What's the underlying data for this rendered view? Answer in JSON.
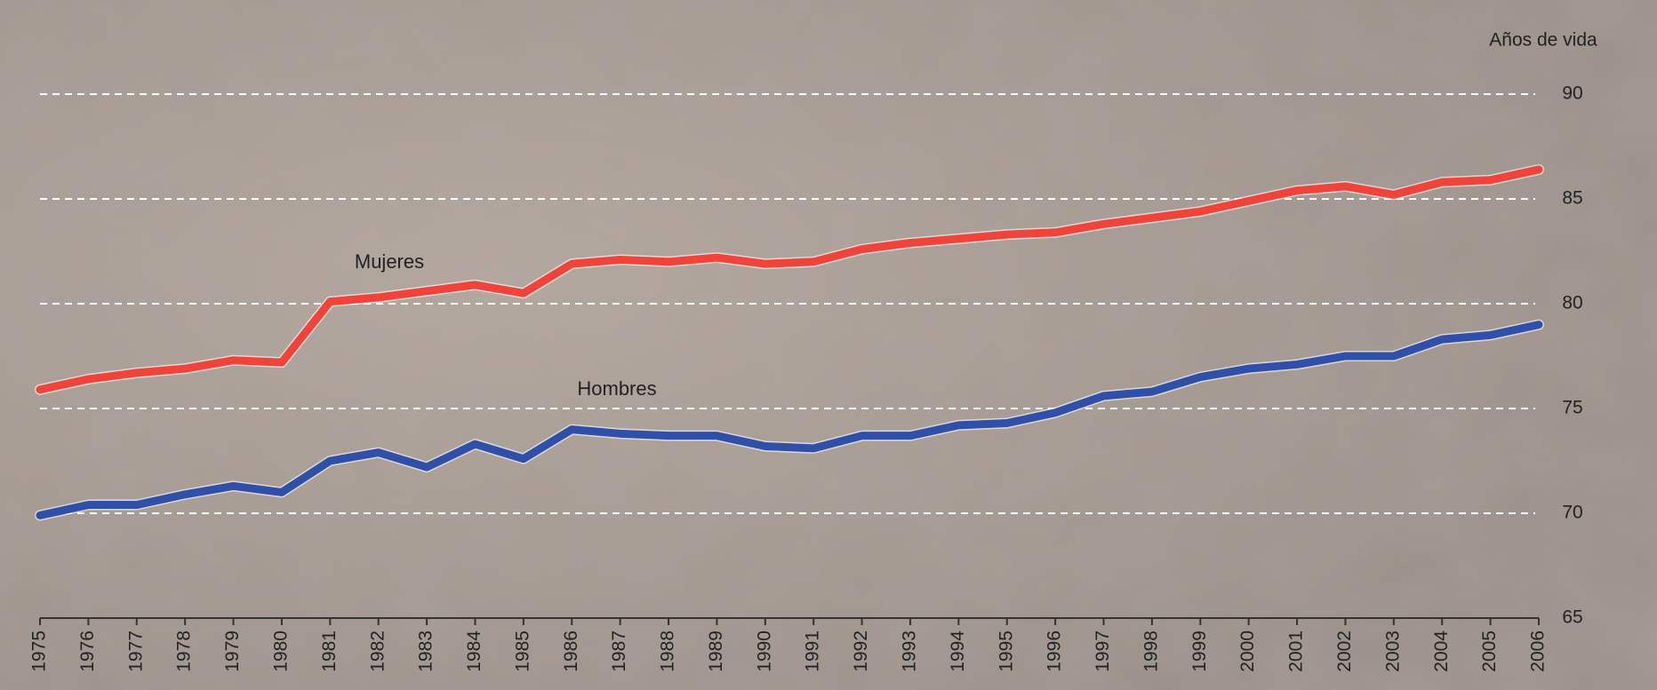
{
  "chart_data": {
    "type": "line",
    "y_axis_label": "Años de vida",
    "categories": [
      "1975",
      "1976",
      "1977",
      "1978",
      "1979",
      "1980",
      "1981",
      "1982",
      "1983",
      "1984",
      "1985",
      "1986",
      "1987",
      "1988",
      "1989",
      "1990",
      "1991",
      "1992",
      "1993",
      "1994",
      "1995",
      "1996",
      "1997",
      "1998",
      "1999",
      "2000",
      "2001",
      "2002",
      "2003",
      "2004",
      "2005",
      "2006"
    ],
    "series": [
      {
        "name": "Mujeres",
        "color": "#f0443a",
        "values": [
          75.9,
          76.4,
          76.7,
          76.9,
          77.3,
          77.2,
          80.1,
          80.3,
          80.6,
          80.9,
          80.5,
          81.9,
          82.1,
          82.0,
          82.2,
          81.9,
          82.0,
          82.6,
          82.9,
          83.1,
          83.3,
          83.4,
          83.8,
          84.1,
          84.4,
          84.9,
          85.4,
          85.6,
          85.2,
          85.8,
          85.9,
          86.4
        ]
      },
      {
        "name": "Hombres",
        "color": "#2f4fa8",
        "values": [
          69.9,
          70.4,
          70.4,
          70.9,
          71.3,
          71.0,
          72.5,
          72.9,
          72.2,
          73.3,
          72.6,
          74.0,
          73.8,
          73.7,
          73.7,
          73.2,
          73.1,
          73.7,
          73.7,
          74.2,
          74.3,
          74.8,
          75.6,
          75.8,
          76.5,
          76.9,
          77.1,
          77.5,
          77.5,
          78.3,
          78.5,
          79.0
        ]
      }
    ],
    "ylim": [
      65,
      90
    ],
    "yticks": [
      65,
      70,
      75,
      80,
      85,
      90
    ],
    "grid": true
  }
}
